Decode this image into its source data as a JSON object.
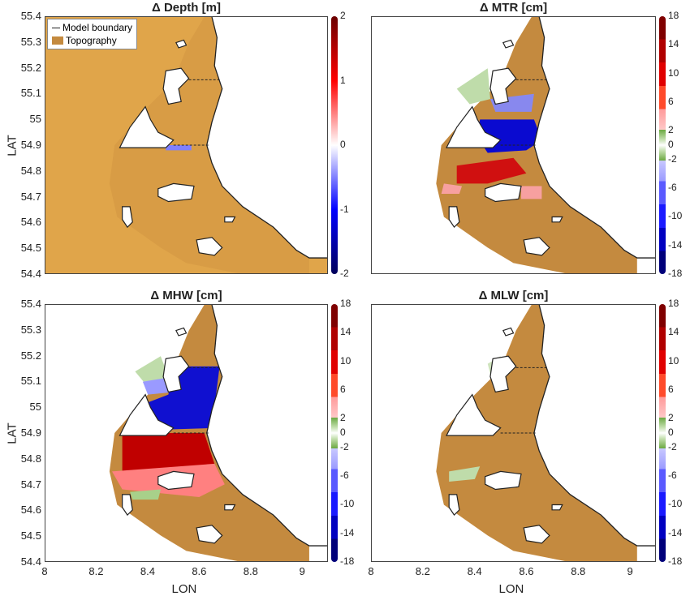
{
  "legend": {
    "boundary": "Model boundary",
    "topography": "Topography"
  },
  "axes": {
    "xlabel": "LON",
    "ylabel": "LAT",
    "xticks": [
      "8",
      "8.2",
      "8.4",
      "8.6",
      "8.8",
      "9"
    ],
    "yticks": [
      "55.4",
      "55.3",
      "55.2",
      "55.1",
      "55",
      "54.9",
      "54.8",
      "54.7",
      "54.6",
      "54.5",
      "54.4"
    ],
    "xlim": [
      8,
      9.1
    ],
    "ylim": [
      54.4,
      55.4
    ]
  },
  "colors": {
    "topography": "#c48a3f",
    "sea_topography": "#e0a54a",
    "boundary": "#222222"
  },
  "panels": [
    {
      "id": "depth",
      "title": "Δ Depth [m]",
      "colorbar_ticks": [
        "2",
        "1",
        "0",
        "-1",
        "-2"
      ],
      "colorbar_range": [
        -2,
        2
      ]
    },
    {
      "id": "mtr",
      "title": "Δ MTR [cm]",
      "colorbar_ticks": [
        "18",
        "14",
        "10",
        "6",
        "2",
        "0",
        "-2",
        "-6",
        "-10",
        "-14",
        "-18"
      ],
      "colorbar_range": [
        -18,
        18
      ]
    },
    {
      "id": "mhw",
      "title": "Δ MHW [cm]",
      "colorbar_ticks": [
        "18",
        "14",
        "10",
        "6",
        "2",
        "0",
        "-2",
        "-6",
        "-10",
        "-14",
        "-18"
      ],
      "colorbar_range": [
        -18,
        18
      ]
    },
    {
      "id": "mlw",
      "title": "Δ MLW [cm]",
      "colorbar_ticks": [
        "18",
        "14",
        "10",
        "6",
        "2",
        "0",
        "-2",
        "-6",
        "-10",
        "-14",
        "-18"
      ],
      "colorbar_range": [
        -18,
        18
      ]
    }
  ]
}
